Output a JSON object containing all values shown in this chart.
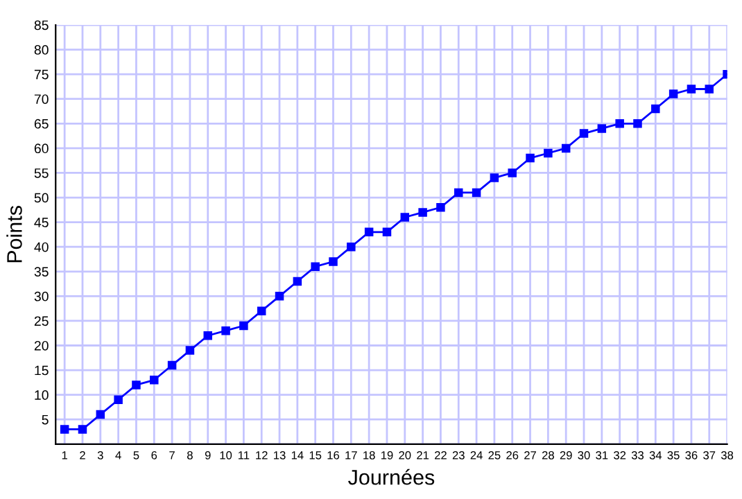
{
  "chart_data": {
    "type": "line",
    "xlabel": "Journées",
    "ylabel": "Points",
    "x": [
      1,
      2,
      3,
      4,
      5,
      6,
      7,
      8,
      9,
      10,
      11,
      12,
      13,
      14,
      15,
      16,
      17,
      18,
      19,
      20,
      21,
      22,
      23,
      24,
      25,
      26,
      27,
      28,
      29,
      30,
      31,
      32,
      33,
      34,
      35,
      36,
      37,
      38
    ],
    "series": [
      {
        "color": "#0000ff",
        "values": [
          3,
          3,
          6,
          9,
          12,
          13,
          16,
          19,
          22,
          23,
          24,
          27,
          30,
          33,
          36,
          37,
          40,
          43,
          43,
          46,
          47,
          48,
          51,
          51,
          54,
          55,
          58,
          59,
          60,
          63,
          64,
          65,
          65,
          68,
          71,
          72,
          72,
          75
        ]
      }
    ],
    "xlim": [
      0.5,
      38
    ],
    "xticks": [
      1,
      2,
      3,
      4,
      5,
      6,
      7,
      8,
      9,
      10,
      11,
      12,
      13,
      14,
      15,
      16,
      17,
      18,
      19,
      20,
      21,
      22,
      23,
      24,
      25,
      26,
      27,
      28,
      29,
      30,
      31,
      32,
      33,
      34,
      35,
      36,
      37,
      38
    ],
    "ylim": [
      0,
      85
    ],
    "yticks": [
      {
        "value": 0,
        "label": null
      },
      5,
      10,
      15,
      20,
      25,
      30,
      35,
      40,
      45,
      50,
      55,
      60,
      65,
      70,
      75,
      80,
      85
    ],
    "grid": true,
    "marker": "square",
    "line_style": "solid"
  }
}
